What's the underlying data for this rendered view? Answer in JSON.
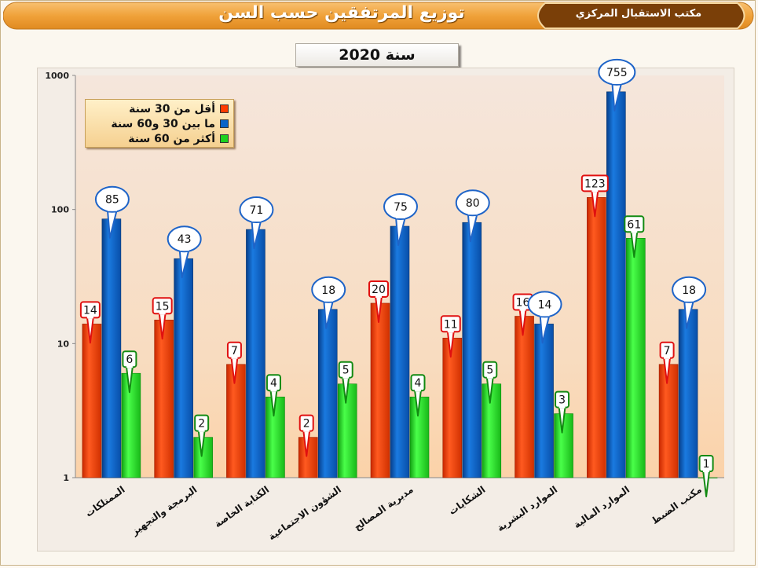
{
  "header": {
    "title": "توزيع المرتفقين حسب السن",
    "office": "مكتب الاستقبال المركزي"
  },
  "year_label": "سنة 2020",
  "colors": {
    "under30": "#ff3c00",
    "between": "#0a64c8",
    "over60": "#1ed21e",
    "banner": "#f0a23a",
    "banner_dark": "#8a4a0a"
  },
  "chart_data": {
    "type": "bar",
    "scale": "log",
    "ylim": [
      1,
      1000
    ],
    "yticks": [
      "1",
      "10",
      "100",
      "1000"
    ],
    "grid": false,
    "legend_position": "top-left",
    "categories": [
      "الممتلكات",
      "البرمجة والتجهيز",
      "الكتابة الخاصة",
      "الشؤون الاجتماعية",
      "مديرية المصالح",
      "الشكايات",
      "الموارد البشرية",
      "الموارد المالية",
      "مكتب الضبط"
    ],
    "series": [
      {
        "name": "أقل من 30 سنة",
        "values": [
          14,
          15,
          7,
          2,
          20,
          11,
          16,
          123,
          7
        ],
        "labels": [
          "14",
          "15",
          "7",
          "2",
          "20",
          "11",
          "16",
          "123",
          "7"
        ]
      },
      {
        "name": "ما بين 30 و60 سنة",
        "values": [
          85,
          43,
          71,
          18,
          75,
          80,
          14,
          755,
          18
        ],
        "labels": [
          "85",
          "43",
          "71",
          "18",
          "75",
          "80",
          "14",
          "755",
          "18"
        ]
      },
      {
        "name": "أكثر من 60 سنة",
        "values": [
          6,
          2,
          4,
          5,
          4,
          5,
          3,
          61,
          1
        ],
        "labels": [
          "6",
          "2",
          "4",
          "5",
          "4",
          "5",
          "3",
          "61",
          "1"
        ]
      }
    ]
  }
}
